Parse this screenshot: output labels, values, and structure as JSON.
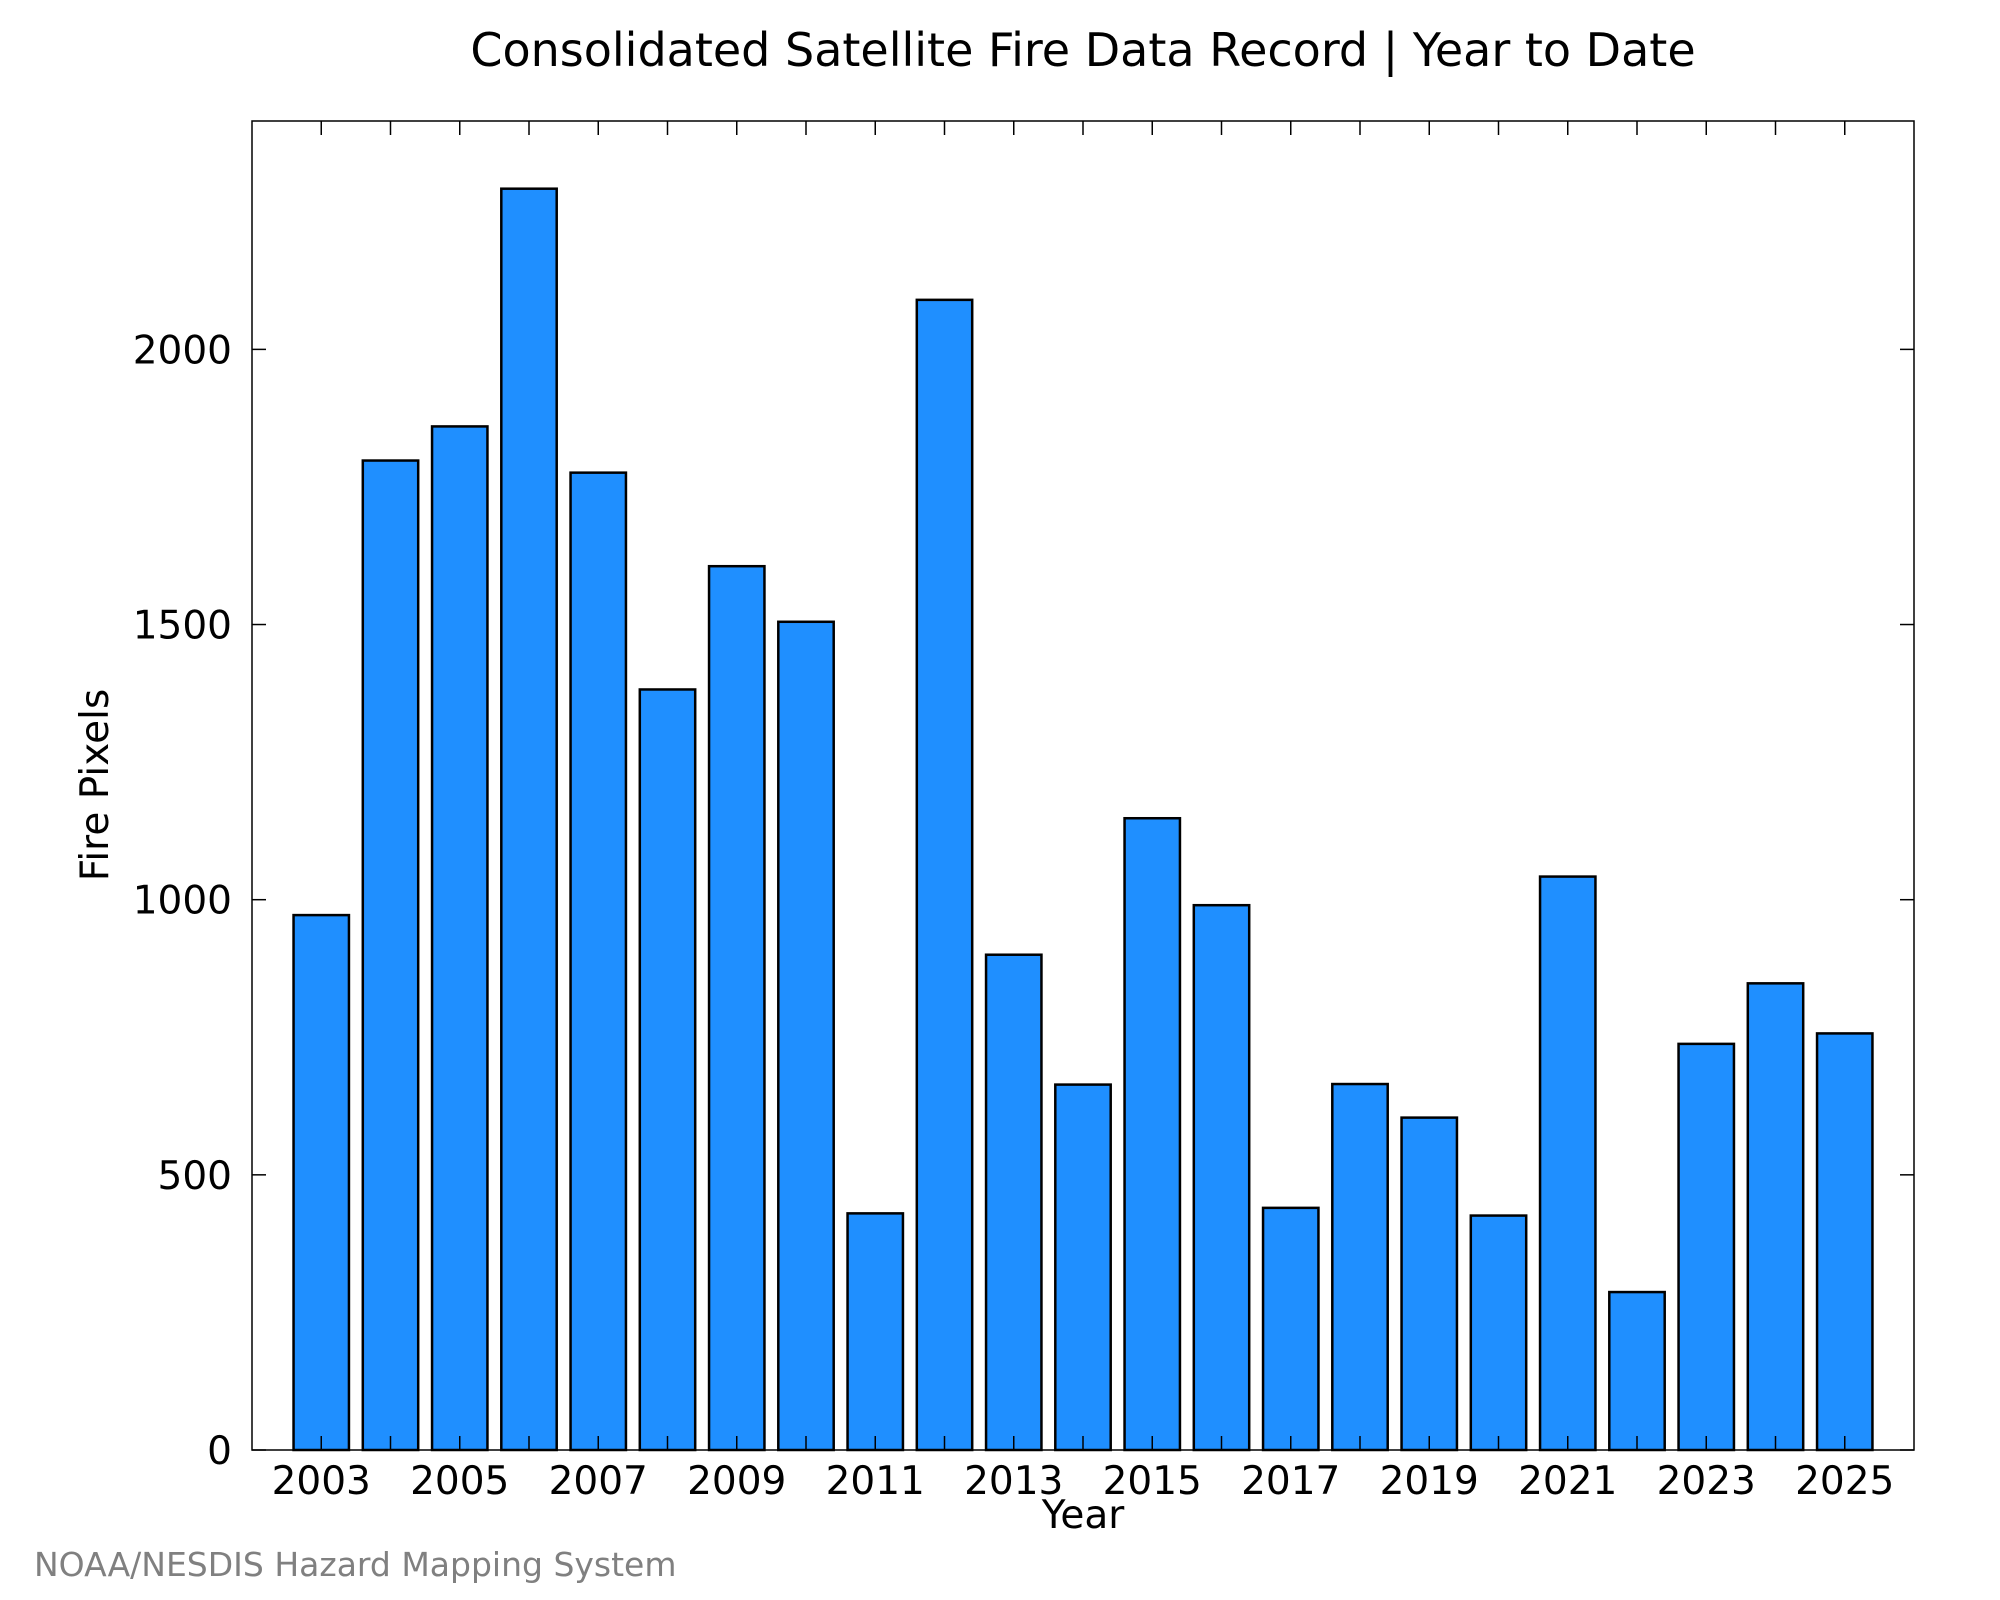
{
  "chart_data": {
    "type": "bar",
    "title": "Consolidated Satellite Fire Data Record | Year to Date",
    "xlabel": "Year",
    "ylabel": "Fire Pixels",
    "categories": [
      "2003",
      "2004",
      "2005",
      "2006",
      "2007",
      "2008",
      "2009",
      "2010",
      "2011",
      "2012",
      "2013",
      "2014",
      "2015",
      "2016",
      "2017",
      "2018",
      "2019",
      "2020",
      "2021",
      "2022",
      "2023",
      "2024",
      "2025"
    ],
    "values": [
      972,
      1798,
      1860,
      2292,
      1776,
      1382,
      1606,
      1505,
      430,
      2090,
      900,
      664,
      1148,
      990,
      440,
      665,
      604,
      426,
      1042,
      287,
      738,
      848,
      757
    ],
    "x_tick_labels": [
      "2003",
      "2005",
      "2007",
      "2009",
      "2011",
      "2013",
      "2015",
      "2017",
      "2019",
      "2021",
      "2023",
      "2025"
    ],
    "y_ticks": [
      0,
      500,
      1000,
      1500,
      2000
    ],
    "ylim": [
      0,
      2415
    ],
    "grid": false,
    "legend": "none",
    "colors": {
      "bar_fill": "#1f8fff",
      "bar_edge": "#000000",
      "axis": "#000000"
    }
  },
  "footer": {
    "credit": "NOAA/NESDIS Hazard Mapping System"
  }
}
